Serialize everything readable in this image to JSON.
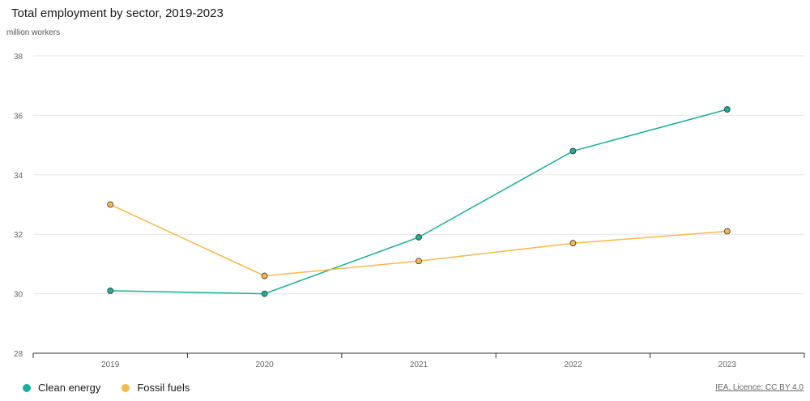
{
  "chart_data": {
    "type": "line",
    "title": "Total employment by sector, 2019-2023",
    "ylabel": "million workers",
    "xlabel": "",
    "categories": [
      "2019",
      "2020",
      "2021",
      "2022",
      "2023"
    ],
    "ylim": [
      28,
      38
    ],
    "yticks": [
      28,
      30,
      32,
      34,
      36,
      38
    ],
    "grid": true,
    "legend_position": "bottom-left",
    "series": [
      {
        "name": "Clean energy",
        "color": "#1aaf9a",
        "values": [
          30.1,
          30.0,
          31.9,
          34.8,
          36.2
        ]
      },
      {
        "name": "Fossil fuels",
        "color": "#f8b84a",
        "values": [
          33.0,
          30.6,
          31.1,
          31.7,
          32.1
        ]
      }
    ]
  },
  "source_text": "IEA. Licence: CC BY 4.0"
}
